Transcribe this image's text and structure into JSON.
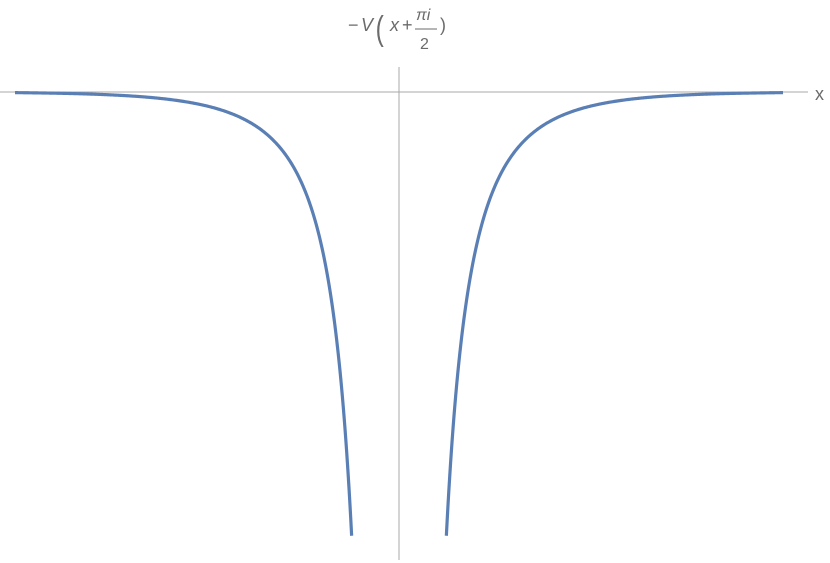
{
  "chart_data": {
    "type": "line",
    "title_parts": {
      "minus": "−",
      "func": "V",
      "paren_open": "(",
      "var": "x",
      "plus": "+",
      "num": "πi",
      "den": "2",
      "paren_close": ")"
    },
    "xlabel": "x",
    "ylabel": "",
    "axis_color": "#a9a9a9",
    "label_color": "#6b6b6b",
    "grid": false,
    "xlim": [
      -3,
      3
    ],
    "ylim": [
      -7,
      0.4
    ],
    "series": [
      {
        "color": "#5a7fb5",
        "formula": "-1/sinh(x)^2",
        "pole": 0,
        "branches": [
          {
            "x": [
              -3.0,
              -2.6,
              -2.2,
              -1.9,
              -1.6,
              -1.4,
              -1.25,
              -1.1,
              -1.0,
              -0.9,
              -0.8,
              -0.7,
              -0.6,
              -0.5,
              -0.45,
              -0.4,
              -0.37
            ],
            "y": [
              -0.01,
              -0.02,
              -0.05,
              -0.11,
              -0.18,
              -0.27,
              -0.38,
              -0.55,
              -0.73,
              -0.93,
              -1.33,
              -1.88,
              -2.58,
              -3.69,
              -4.36,
              -5.59,
              -7.0
            ]
          },
          {
            "x": [
              0.37,
              0.4,
              0.45,
              0.5,
              0.6,
              0.7,
              0.8,
              0.9,
              1.0,
              1.1,
              1.25,
              1.4,
              1.6,
              1.9,
              2.2,
              2.6,
              3.0
            ],
            "y": [
              -7.0,
              -5.59,
              -4.36,
              -3.69,
              -2.58,
              -1.88,
              -1.33,
              -0.93,
              -0.73,
              -0.55,
              -0.38,
              -0.27,
              -0.18,
              -0.11,
              -0.05,
              -0.02,
              -0.01
            ]
          }
        ]
      }
    ]
  }
}
